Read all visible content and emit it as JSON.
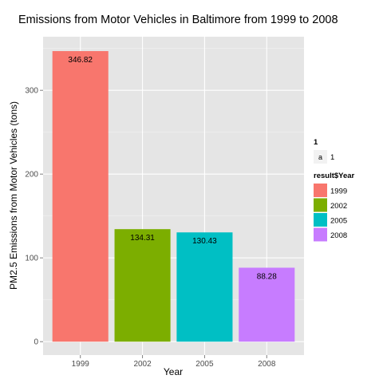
{
  "chart_data": {
    "type": "bar",
    "title": "Emissions from Motor Vehicles in Baltimore from 1999 to 2008",
    "xlabel": "Year",
    "ylabel": "PM2.5 Emissions from Motor Vehicles (tons)",
    "categories": [
      "1999",
      "2002",
      "2005",
      "2008"
    ],
    "values": [
      346.82,
      134.31,
      130.43,
      88.28
    ],
    "value_labels": [
      "346.82",
      "134.31",
      "130.43",
      "88.28"
    ],
    "colors": [
      "#F8766D",
      "#7CAE00",
      "#00BFC4",
      "#C77CFF"
    ],
    "ylim": [
      -16,
      364
    ],
    "yticks": [
      0,
      100,
      200,
      300
    ],
    "ytick_labels": [
      "0",
      "100",
      "200",
      "300"
    ],
    "grid": true,
    "legend_placement": "right"
  },
  "legend": {
    "label_legend": {
      "title": "1",
      "key_letter": "a",
      "entry": "1"
    },
    "year_legend": {
      "title": "result$Year",
      "entries": [
        "1999",
        "2002",
        "2005",
        "2008"
      ]
    }
  },
  "theme": {
    "panel_bg": "#E5E5E5",
    "grid_major": "#FFFFFF",
    "grid_minor": "#F2F2F2",
    "tick_color": "#7F7F7F"
  }
}
